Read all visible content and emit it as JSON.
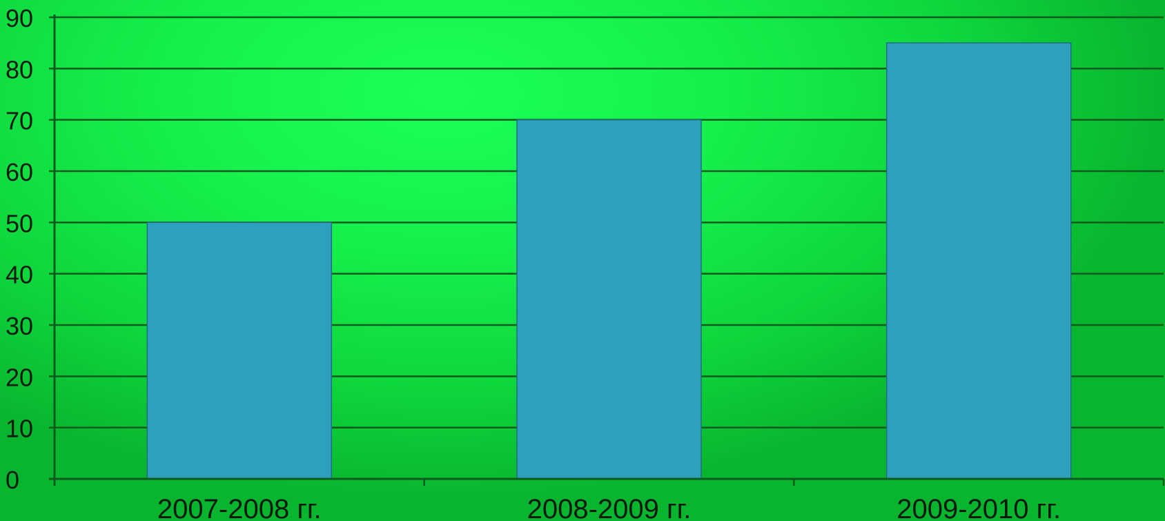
{
  "chart_data": {
    "type": "bar",
    "categories": [
      "2007-2008 гг.",
      "2008-2009 гг.",
      "2009-2010 гг."
    ],
    "values": [
      50,
      70,
      85
    ],
    "ylim": [
      0,
      90
    ],
    "y_ticks": [
      "0",
      "10",
      "20",
      "30",
      "40",
      "50",
      "60",
      "70",
      "80",
      "90"
    ],
    "grid": true,
    "legend": "none",
    "bar_color": "#2ea0bd",
    "grid_color": "#0c5a1c"
  }
}
